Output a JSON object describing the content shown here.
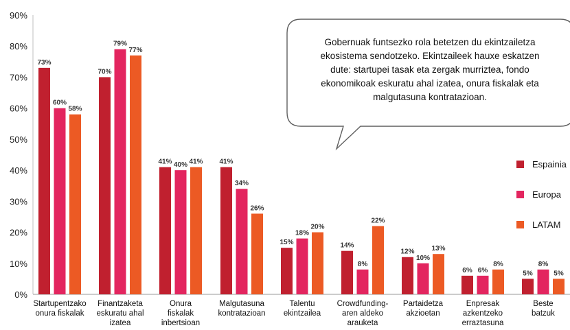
{
  "chart_data": {
    "type": "bar",
    "title": "",
    "xlabel": "",
    "ylabel": "",
    "ylim": [
      0,
      90
    ],
    "y_ticks": [
      "0%",
      "10%",
      "20%",
      "30%",
      "40%",
      "50%",
      "60%",
      "70%",
      "80%",
      "90%"
    ],
    "grid": false,
    "legend_position": "right",
    "categories": [
      [
        "Startupentzako",
        "onura fiskalak"
      ],
      [
        "Finantzaketa",
        "eskuratu ahal",
        "izatea"
      ],
      [
        "Onura",
        "fiskalak",
        "inbertsioan"
      ],
      [
        "Malgutasuna",
        "kontratazioan"
      ],
      [
        "Talentu",
        "ekintzailea"
      ],
      [
        "Crowdfunding-",
        "aren aldeko",
        "arauketa"
      ],
      [
        "Partaidetza",
        "akzioetan"
      ],
      [
        "Enpresak",
        "azkentzeko",
        "erraztasuna"
      ],
      [
        "Beste",
        "batzuk"
      ]
    ],
    "series": [
      {
        "name": "Espainia",
        "color": "#c0202f",
        "values": [
          73,
          70,
          41,
          41,
          15,
          14,
          12,
          6,
          5
        ],
        "labels": [
          "73%",
          "70%",
          "41%",
          "41%",
          "15%",
          "14%",
          "12%",
          "6%",
          "5%"
        ]
      },
      {
        "name": "Europa",
        "color": "#e3255f",
        "values": [
          60,
          79,
          40,
          34,
          18,
          8,
          10,
          6,
          8
        ],
        "labels": [
          "60%",
          "79%",
          "40%",
          "34%",
          "18%",
          "8%",
          "10%",
          "6%",
          "8%"
        ]
      },
      {
        "name": "LATAM",
        "color": "#ec5a24",
        "values": [
          58,
          77,
          41,
          26,
          20,
          22,
          13,
          8,
          5
        ],
        "labels": [
          "58%",
          "77%",
          "41%",
          "26%",
          "20%",
          "22%",
          "13%",
          "8%",
          "5%"
        ]
      }
    ],
    "annotation": [
      "Gobernuak funtsezko rola betetzen du ekintzailetza",
      "ekosistema sendotzeko. Ekintzaileek hauxe eskatzen",
      "dute: startupei tasak eta zergak murriztea, fondo",
      "ekonomikoak eskuratu ahal izatea, onura fiskalak eta",
      "malgutasuna kontratazioan."
    ]
  }
}
